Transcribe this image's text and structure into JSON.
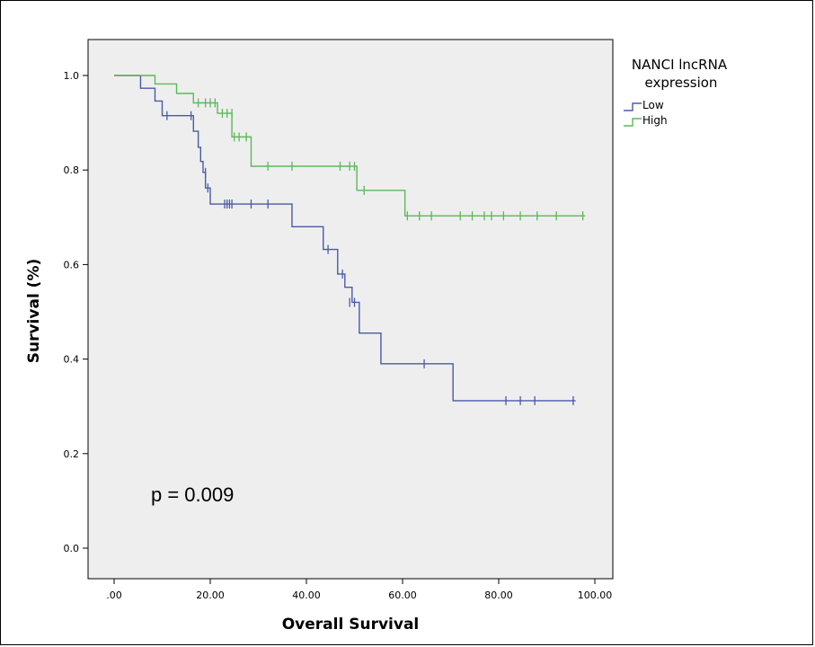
{
  "chart_data": {
    "type": "line",
    "subtype": "kaplan-meier",
    "title": "",
    "xlabel": "Overall Survival",
    "ylabel": "Survival (%)",
    "xlim": [
      0,
      100
    ],
    "ylim": [
      0,
      1.0
    ],
    "x_ticks": [
      ".00",
      "20.00",
      "40.00",
      "60.00",
      "80.00",
      "100.00"
    ],
    "y_ticks": [
      "0.0",
      "0.2",
      "0.4",
      "0.6",
      "0.8",
      "1.0"
    ],
    "grid": false,
    "background": "#eeeeee",
    "legend": {
      "title_lines": [
        "NANCI lncRNA",
        "expression"
      ],
      "placement": "right",
      "entries": [
        "Low",
        "High"
      ]
    },
    "annotation": "p = 0.009",
    "series": [
      {
        "name": "Low",
        "color": "#4a5aa8",
        "steps": [
          [
            0,
            1.0
          ],
          [
            5.5,
            0.973
          ],
          [
            8.5,
            0.946
          ],
          [
            10,
            0.915
          ],
          [
            16.5,
            0.882
          ],
          [
            17.5,
            0.848
          ],
          [
            18,
            0.818
          ],
          [
            18.5,
            0.795
          ],
          [
            19,
            0.762
          ],
          [
            20,
            0.728
          ],
          [
            37,
            0.68
          ],
          [
            43.5,
            0.632
          ],
          [
            46.5,
            0.58
          ],
          [
            48,
            0.552
          ],
          [
            49.5,
            0.52
          ],
          [
            51,
            0.455
          ],
          [
            55.5,
            0.39
          ],
          [
            70.5,
            0.312
          ],
          [
            96,
            0.312
          ]
        ],
        "censored": [
          [
            11,
            0.915
          ],
          [
            16,
            0.915
          ],
          [
            19,
            0.795
          ],
          [
            19.5,
            0.762
          ],
          [
            23,
            0.728
          ],
          [
            23.5,
            0.728
          ],
          [
            24,
            0.728
          ],
          [
            24.5,
            0.728
          ],
          [
            28.5,
            0.728
          ],
          [
            32,
            0.728
          ],
          [
            44.5,
            0.632
          ],
          [
            47.5,
            0.58
          ],
          [
            49,
            0.52
          ],
          [
            50,
            0.52
          ],
          [
            64.5,
            0.39
          ],
          [
            81.5,
            0.312
          ],
          [
            84.5,
            0.312
          ],
          [
            87.5,
            0.312
          ],
          [
            95.5,
            0.312
          ]
        ]
      },
      {
        "name": "High",
        "color": "#5cb85c",
        "steps": [
          [
            0,
            1.0
          ],
          [
            8.5,
            0.982
          ],
          [
            13,
            0.962
          ],
          [
            16.5,
            0.942
          ],
          [
            21.5,
            0.92
          ],
          [
            24.5,
            0.87
          ],
          [
            28.5,
            0.808
          ],
          [
            50.5,
            0.757
          ],
          [
            60.5,
            0.703
          ],
          [
            98,
            0.703
          ]
        ],
        "censored": [
          [
            17.5,
            0.942
          ],
          [
            19,
            0.942
          ],
          [
            20,
            0.942
          ],
          [
            21,
            0.942
          ],
          [
            22.5,
            0.92
          ],
          [
            23.5,
            0.92
          ],
          [
            24.5,
            0.92
          ],
          [
            25,
            0.87
          ],
          [
            26,
            0.87
          ],
          [
            27.5,
            0.87
          ],
          [
            32,
            0.808
          ],
          [
            37,
            0.808
          ],
          [
            47,
            0.808
          ],
          [
            49,
            0.808
          ],
          [
            50,
            0.808
          ],
          [
            52,
            0.757
          ],
          [
            61,
            0.703
          ],
          [
            63.5,
            0.703
          ],
          [
            66,
            0.703
          ],
          [
            72,
            0.703
          ],
          [
            74.5,
            0.703
          ],
          [
            77,
            0.703
          ],
          [
            78.5,
            0.703
          ],
          [
            81,
            0.703
          ],
          [
            84.5,
            0.703
          ],
          [
            88,
            0.703
          ],
          [
            92,
            0.703
          ],
          [
            97.5,
            0.703
          ]
        ]
      }
    ]
  }
}
